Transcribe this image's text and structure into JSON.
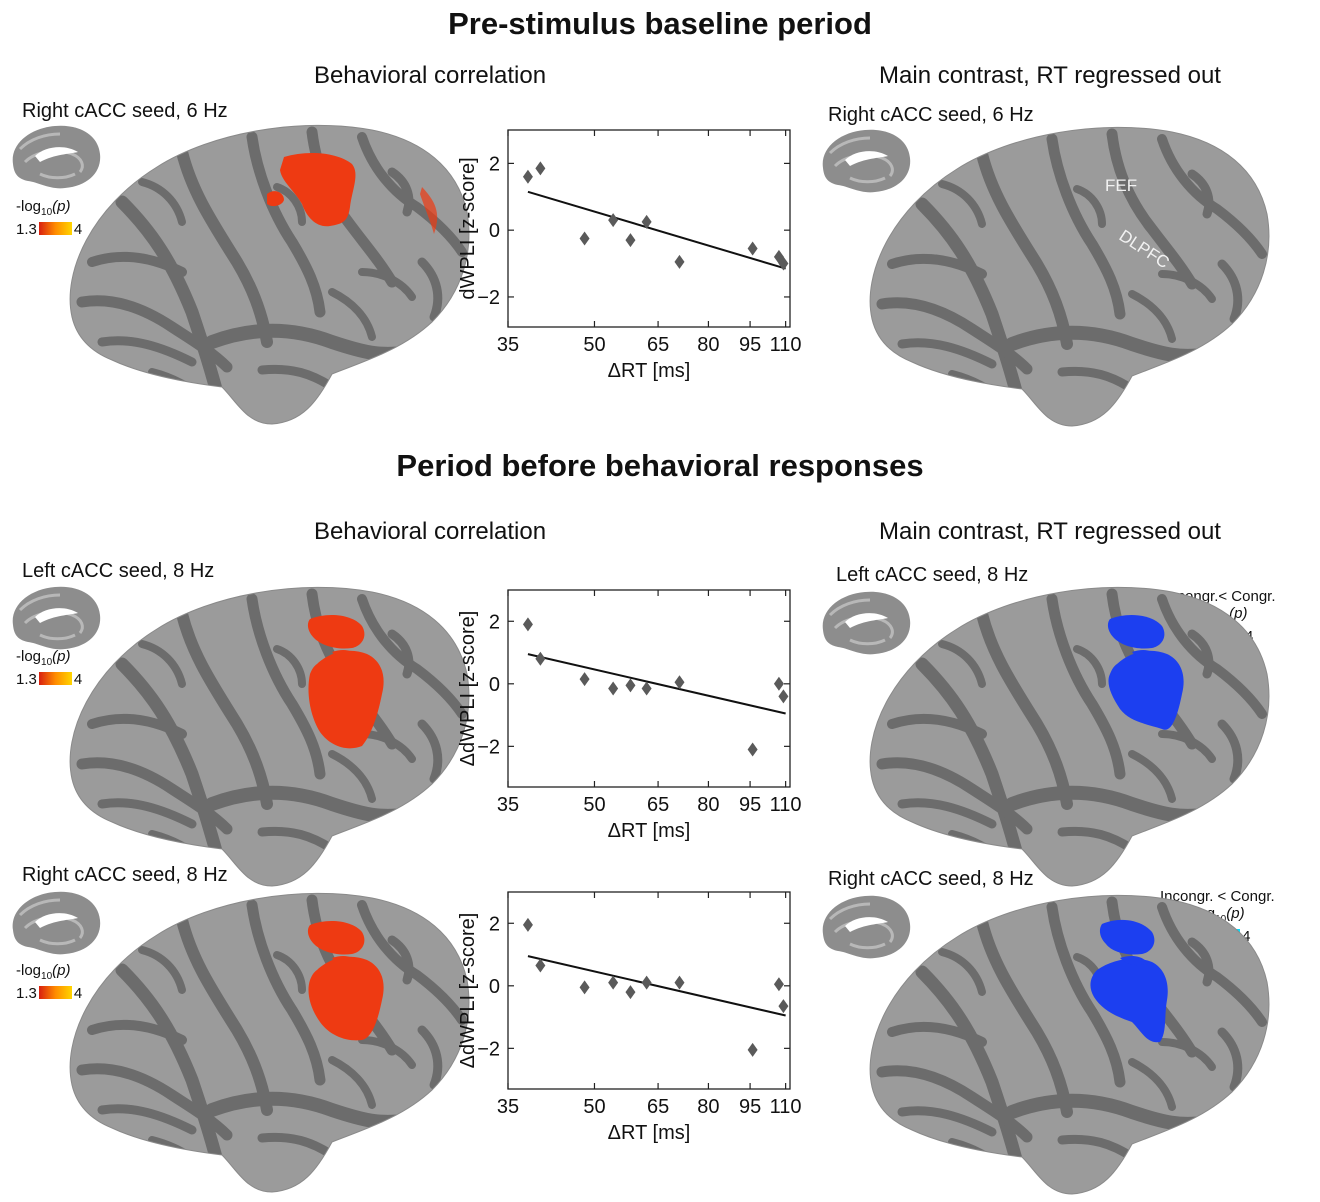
{
  "sections": [
    {
      "title": "Pre-stimulus baseline period"
    },
    {
      "title": "Period before behavioral responses"
    }
  ],
  "column_titles": {
    "behavioral": "Behavioral correlation",
    "main_contrast": "Main contrast, RT regressed out"
  },
  "legend": {
    "label": "-log",
    "subscript": "10",
    "label_suffix": "(p)",
    "min": "1.3",
    "max": "4",
    "contrast_label_1": "Incongr.< Congr.",
    "contrast_label_2": "Incongr. < Congr."
  },
  "colors": {
    "positive_cluster": "#ee3a12",
    "negative_cluster": "#1c3ff0",
    "gyri": "#9b9b9b",
    "sulci": "#6c6c6c",
    "scatter_marker": "#5a5a5a"
  },
  "rows": [
    {
      "left_seed": "Right cACC seed, 6 Hz",
      "right_seed": "Right cACC seed, 6 Hz",
      "region_labels": [
        "FEF",
        "DLPFC"
      ]
    },
    {
      "left_seed": "Left cACC seed, 8 Hz",
      "right_seed": "Left cACC seed, 8 Hz"
    },
    {
      "left_seed": "Right cACC seed, 8 Hz",
      "right_seed": "Right cACC seed, 8 Hz"
    }
  ],
  "chart_data": [
    {
      "type": "scatter",
      "xlabel": "ΔRT [ms]",
      "ylabel": "dWPLI [z-score]",
      "xticks": [
        "35",
        "50",
        "65",
        "80",
        "95",
        "110"
      ],
      "yticks": [
        "2",
        "0",
        "−2"
      ],
      "xscale": "log",
      "xlim": [
        35,
        112
      ],
      "ylim": [
        -2.9,
        3.0
      ],
      "points": [
        [
          38,
          1.6
        ],
        [
          40,
          1.85
        ],
        [
          48,
          -0.25
        ],
        [
          54,
          0.3
        ],
        [
          58,
          -0.3
        ],
        [
          62,
          0.25
        ],
        [
          71,
          -0.95
        ],
        [
          96,
          -0.55
        ],
        [
          107,
          -0.8
        ],
        [
          109,
          -1.0
        ]
      ],
      "fit": [
        [
          38,
          1.15
        ],
        [
          110,
          -1.15
        ]
      ]
    },
    {
      "type": "scatter",
      "xlabel": "ΔRT [ms]",
      "ylabel": "ΔdWPLI [z-score]",
      "xticks": [
        "35",
        "50",
        "65",
        "80",
        "95",
        "110"
      ],
      "yticks": [
        "2",
        "0",
        "−2"
      ],
      "xscale": "log",
      "xlim": [
        35,
        112
      ],
      "ylim": [
        -3.3,
        3.0
      ],
      "points": [
        [
          38,
          1.9
        ],
        [
          40,
          0.8
        ],
        [
          48,
          0.15
        ],
        [
          54,
          -0.15
        ],
        [
          58,
          -0.05
        ],
        [
          62,
          -0.15
        ],
        [
          71,
          0.05
        ],
        [
          96,
          -2.1
        ],
        [
          107,
          0.0
        ],
        [
          109,
          -0.4
        ]
      ],
      "fit": [
        [
          38,
          0.95
        ],
        [
          110,
          -0.95
        ]
      ]
    },
    {
      "type": "scatter",
      "xlabel": "ΔRT [ms]",
      "ylabel": "ΔdWPLI [z-score]",
      "xticks": [
        "35",
        "50",
        "65",
        "80",
        "95",
        "110"
      ],
      "yticks": [
        "2",
        "0",
        "−2"
      ],
      "xscale": "log",
      "xlim": [
        35,
        112
      ],
      "ylim": [
        -3.3,
        3.0
      ],
      "points": [
        [
          38,
          1.95
        ],
        [
          40,
          0.65
        ],
        [
          48,
          -0.05
        ],
        [
          54,
          0.1
        ],
        [
          58,
          -0.2
        ],
        [
          62,
          0.1
        ],
        [
          71,
          0.1
        ],
        [
          96,
          -2.05
        ],
        [
          107,
          0.05
        ],
        [
          109,
          -0.65
        ]
      ],
      "fit": [
        [
          38,
          0.95
        ],
        [
          110,
          -0.95
        ]
      ]
    }
  ]
}
